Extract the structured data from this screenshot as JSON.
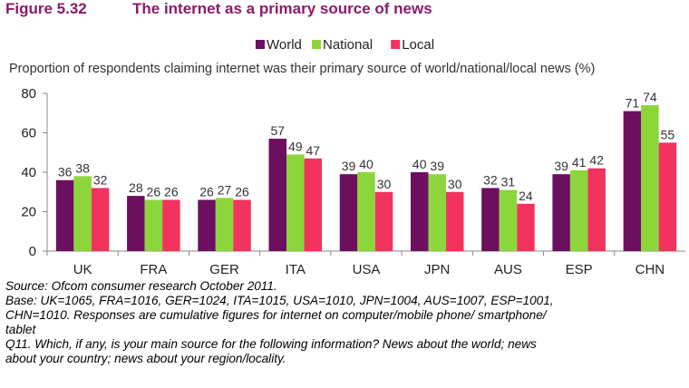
{
  "figure": {
    "number": "Figure 5.32",
    "title": "The internet as a primary source of news"
  },
  "chart_data": {
    "type": "bar",
    "title": "Proportion of respondents claiming internet was their primary source of world/national/local news (%)",
    "xlabel": "",
    "ylabel": "",
    "ylim": [
      0,
      80
    ],
    "yticks": [
      "0",
      "20",
      "40",
      "60",
      "80"
    ],
    "grid": false,
    "legend_position": "top",
    "categories": [
      "UK",
      "FRA",
      "GER",
      "ITA",
      "USA",
      "JPN",
      "AUS",
      "ESP",
      "CHN"
    ],
    "series": [
      {
        "name": "World",
        "color": "#6B0F5E",
        "values": [
          36,
          28,
          26,
          57,
          39,
          40,
          32,
          39,
          71
        ]
      },
      {
        "name": "National",
        "color": "#8CD63C",
        "values": [
          38,
          26,
          27,
          49,
          40,
          39,
          31,
          41,
          74
        ]
      },
      {
        "name": "Local",
        "color": "#F2335E",
        "values": [
          32,
          26,
          26,
          47,
          30,
          30,
          24,
          42,
          55
        ]
      }
    ]
  },
  "notes": {
    "source": "Source: Ofcom consumer research October 2011.",
    "base_line1": "Base: UK=1065, FRA=1016, GER=1024, ITA=1015, USA=1010, JPN=1004, AUS=1007, ESP=1001,",
    "base_line2": "CHN=1010. Responses are cumulative figures for internet on computer/mobile phone/ smartphone/",
    "base_line3": "tablet",
    "q_line1": "Q11. Which, if any, is your main source for the following information? News about the world; news",
    "q_line2": "about your country; news about your region/locality."
  }
}
